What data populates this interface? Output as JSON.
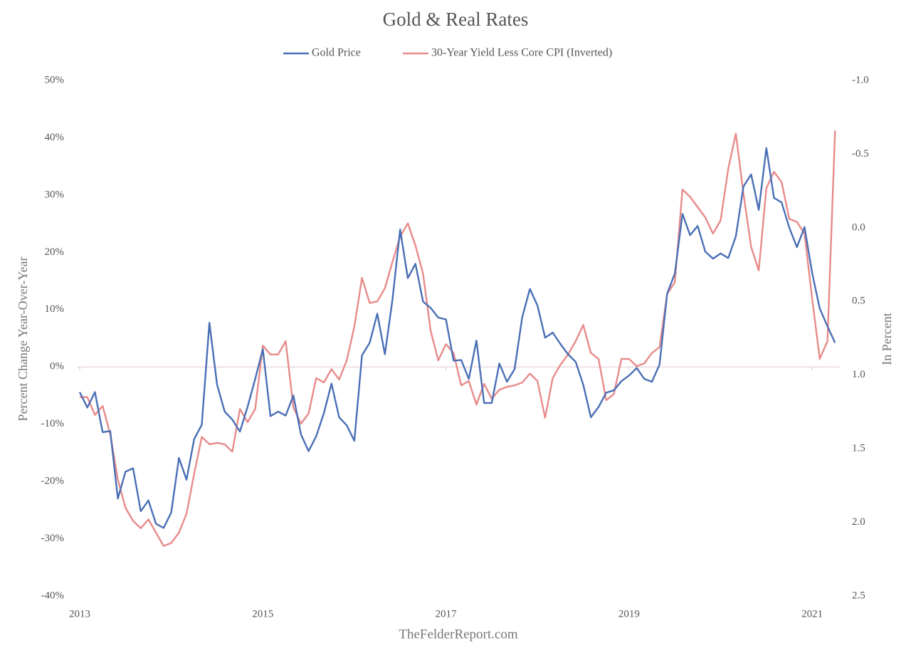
{
  "chart_data": {
    "type": "line",
    "title": "Gold & Real Rates",
    "ylabel": "Percent Change Year-Over-Year",
    "y2label": "In Percent",
    "source": "TheFelderReport.com",
    "categories": [
      "2013",
      null,
      null,
      null,
      null,
      null,
      null,
      null,
      null,
      null,
      null,
      null,
      null,
      null,
      null,
      null,
      null,
      null,
      null,
      null,
      null,
      null,
      null,
      null,
      "2015",
      null,
      null,
      null,
      null,
      null,
      null,
      null,
      null,
      null,
      null,
      null,
      null,
      null,
      null,
      null,
      null,
      null,
      null,
      null,
      null,
      null,
      null,
      null,
      "2017",
      null,
      null,
      null,
      null,
      null,
      null,
      null,
      null,
      null,
      null,
      null,
      null,
      null,
      null,
      null,
      null,
      null,
      null,
      null,
      null,
      null,
      null,
      null,
      "2019",
      null,
      null,
      null,
      null,
      null,
      null,
      null,
      null,
      null,
      null,
      null,
      null,
      null,
      null,
      null,
      null,
      null,
      null,
      null,
      null,
      null,
      null,
      null,
      "2021",
      null,
      null,
      null
    ],
    "series": [
      {
        "name": "Gold Price",
        "color": "#4a6fb5",
        "values": [
          -4.4,
          -7.1,
          -4.4,
          -11.4,
          -11.2,
          -23,
          -18.3,
          -17.7,
          -25.2,
          -23.3,
          -27.4,
          -28.1,
          -25.4,
          -15.9,
          -19.7,
          -12.6,
          -10.1,
          7.7,
          -3.1,
          -7.8,
          -9.2,
          -11.3,
          -7,
          -2.1,
          3.1,
          -8.6,
          -7.8,
          -8.5,
          -5,
          -11.8,
          -14.7,
          -12.1,
          -8.1,
          -2.9,
          -8.8,
          -10.2,
          -12.9,
          2,
          4.2,
          9.3,
          2.2,
          11.8,
          24,
          15.5,
          18,
          11.4,
          10.3,
          8.6,
          8.3,
          1.1,
          1.2,
          -2.1,
          4.6,
          -6.3,
          -6.3,
          0.6,
          -2.6,
          -0.4,
          8.7,
          13.6,
          10.7,
          5.1,
          6,
          4,
          2.2,
          0.9,
          -3.1,
          -8.8,
          -7,
          -4.5,
          -4.1,
          -2.5,
          -1.5,
          -0.2,
          -2.1,
          -2.6,
          0.4,
          12.8,
          16.3,
          26.7,
          23,
          24.6,
          20.1,
          18.9,
          19.8,
          19,
          22.8,
          31.5,
          33.6,
          27.4,
          38.2,
          29.5,
          28.7,
          24.3,
          20.9,
          24.4,
          16.4,
          10.2,
          7.1,
          4.2
        ]
      },
      {
        "name": "30-Year Yield Less Core CPI (Inverted)",
        "color": "#e88a8a",
        "axis": "y2",
        "values": [
          1.15,
          1.15,
          1.27,
          1.21,
          1.4,
          1.71,
          1.9,
          1.99,
          2.04,
          1.98,
          2.07,
          2.16,
          2.14,
          2.07,
          1.94,
          1.67,
          1.42,
          1.47,
          1.46,
          1.47,
          1.52,
          1.23,
          1.32,
          1.23,
          0.8,
          0.86,
          0.86,
          0.77,
          1.22,
          1.33,
          1.26,
          1.02,
          1.05,
          0.96,
          1.03,
          0.9,
          0.67,
          0.34,
          0.51,
          0.5,
          0.41,
          0.23,
          0.06,
          -0.03,
          0.12,
          0.31,
          0.7,
          0.9,
          0.79,
          0.85,
          1.07,
          1.04,
          1.2,
          1.06,
          1.16,
          1.1,
          1.08,
          1.07,
          1.05,
          0.99,
          1.04,
          1.29,
          1.02,
          0.93,
          0.86,
          0.77,
          0.66,
          0.85,
          0.89,
          1.17,
          1.13,
          0.89,
          0.89,
          0.94,
          0.92,
          0.85,
          0.81,
          0.45,
          0.37,
          -0.26,
          -0.21,
          -0.14,
          -0.07,
          0.04,
          -0.05,
          -0.4,
          -0.64,
          -0.23,
          0.13,
          0.29,
          -0.27,
          -0.38,
          -0.31,
          -0.06,
          -0.04,
          0.04,
          0.48,
          0.89,
          0.77,
          -0.66
        ]
      }
    ],
    "ylim": [
      -40,
      50
    ],
    "yticks": [
      {
        "value": -40,
        "label": "-40%"
      },
      {
        "value": -30,
        "label": "-30%"
      },
      {
        "value": -20,
        "label": "-20%"
      },
      {
        "value": -10,
        "label": "-10%"
      },
      {
        "value": 0,
        "label": "0%"
      },
      {
        "value": 10,
        "label": "10%"
      },
      {
        "value": 20,
        "label": "20%"
      },
      {
        "value": 30,
        "label": "30%"
      },
      {
        "value": 40,
        "label": "40%"
      },
      {
        "value": 50,
        "label": "50%"
      }
    ],
    "y2lim": [
      2.5,
      -1.0
    ],
    "y2ticks": [
      {
        "value": 2.5,
        "label": "2.5"
      },
      {
        "value": 2.0,
        "label": "2.0"
      },
      {
        "value": 1.5,
        "label": "1.5"
      },
      {
        "value": 1.0,
        "label": "1.0"
      },
      {
        "value": 0.5,
        "label": "0.5"
      },
      {
        "value": 0,
        "label": "0.0"
      },
      {
        "value": -0.5,
        "label": "-0.5"
      },
      {
        "value": -1.0,
        "label": "-1.0"
      }
    ],
    "legend": "top",
    "grid": false
  }
}
